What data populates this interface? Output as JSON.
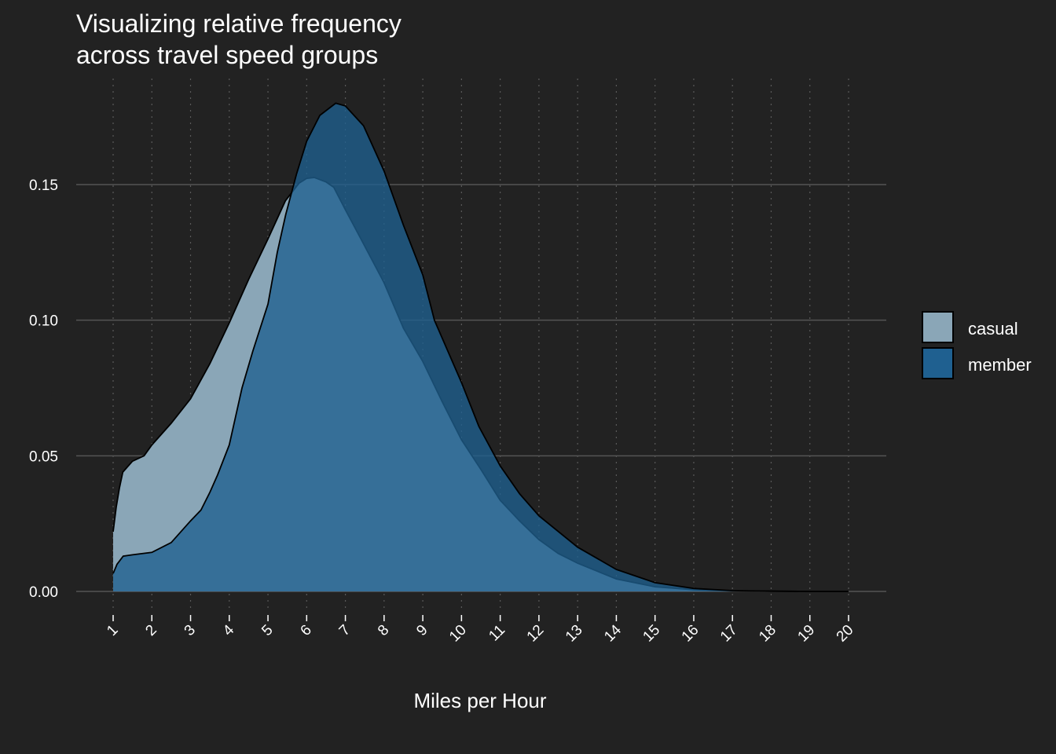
{
  "chart_data": {
    "type": "area",
    "title": "Visualizing relative frequency\nacross travel speed groups",
    "xlabel": "Miles per Hour",
    "ylabel": "",
    "xlim": [
      1,
      20
    ],
    "ylim": [
      0,
      0.18
    ],
    "x_ticks": [
      "1",
      "2",
      "3",
      "4",
      "5",
      "6",
      "7",
      "8",
      "9",
      "10",
      "11",
      "12",
      "13",
      "14",
      "15",
      "16",
      "17",
      "18",
      "19",
      "20"
    ],
    "y_ticks": [
      "0.00",
      "0.05",
      "0.10",
      "0.15"
    ],
    "y_tick_values": [
      0,
      0.05,
      0.1,
      0.15
    ],
    "grid": true,
    "legend_position": "right",
    "series": [
      {
        "name": "casual",
        "color": "#8aa6b7",
        "x": [
          1.0,
          1.08,
          1.16,
          1.25,
          1.5,
          1.8,
          2.0,
          2.5,
          3.0,
          3.5,
          4.0,
          4.5,
          5.0,
          5.45,
          5.8,
          6.0,
          6.2,
          6.5,
          6.7,
          7.0,
          7.4,
          8.0,
          8.5,
          9.0,
          9.5,
          10.0,
          10.5,
          11.0,
          11.5,
          12.0,
          12.5,
          13.0,
          14.0,
          15.0,
          16.0,
          17.0,
          18.0,
          19.0,
          20.0
        ],
        "values": [
          0.022,
          0.031,
          0.038,
          0.044,
          0.048,
          0.05,
          0.054,
          0.062,
          0.071,
          0.084,
          0.099,
          0.115,
          0.13,
          0.144,
          0.1505,
          0.1523,
          0.1526,
          0.151,
          0.149,
          0.1407,
          0.13,
          0.1138,
          0.097,
          0.0848,
          0.07,
          0.0559,
          0.045,
          0.0336,
          0.026,
          0.0191,
          0.014,
          0.0104,
          0.0046,
          0.0017,
          0.0006,
          0.0002,
          0.0001,
          0.0,
          0.0
        ]
      },
      {
        "name": "member",
        "color": "#1f6090",
        "x": [
          1.0,
          1.1,
          1.26,
          1.5,
          2.0,
          2.5,
          3.0,
          3.27,
          3.5,
          3.7,
          4.0,
          4.33,
          4.61,
          5.0,
          5.24,
          5.46,
          5.74,
          6.0,
          6.34,
          6.75,
          7.0,
          7.47,
          8.0,
          8.5,
          9.0,
          9.3,
          10.0,
          10.45,
          11.0,
          11.5,
          12.0,
          13.0,
          14.0,
          15.0,
          16.0,
          17.0,
          18.0,
          19.0,
          20.0
        ],
        "values": [
          0.0066,
          0.01,
          0.013,
          0.0135,
          0.0144,
          0.018,
          0.026,
          0.03,
          0.0366,
          0.043,
          0.054,
          0.075,
          0.0886,
          0.106,
          0.125,
          0.139,
          0.154,
          0.166,
          0.1755,
          0.18,
          0.179,
          0.1717,
          0.155,
          0.135,
          0.1167,
          0.1,
          0.077,
          0.0608,
          0.0463,
          0.036,
          0.0279,
          0.0163,
          0.0081,
          0.0032,
          0.0011,
          0.0003,
          0.0001,
          0.0,
          0.0
        ]
      }
    ]
  },
  "legend": {
    "items": [
      {
        "label": "casual",
        "color": "#8aa6b7"
      },
      {
        "label": "member",
        "color": "#1f6090"
      }
    ]
  }
}
